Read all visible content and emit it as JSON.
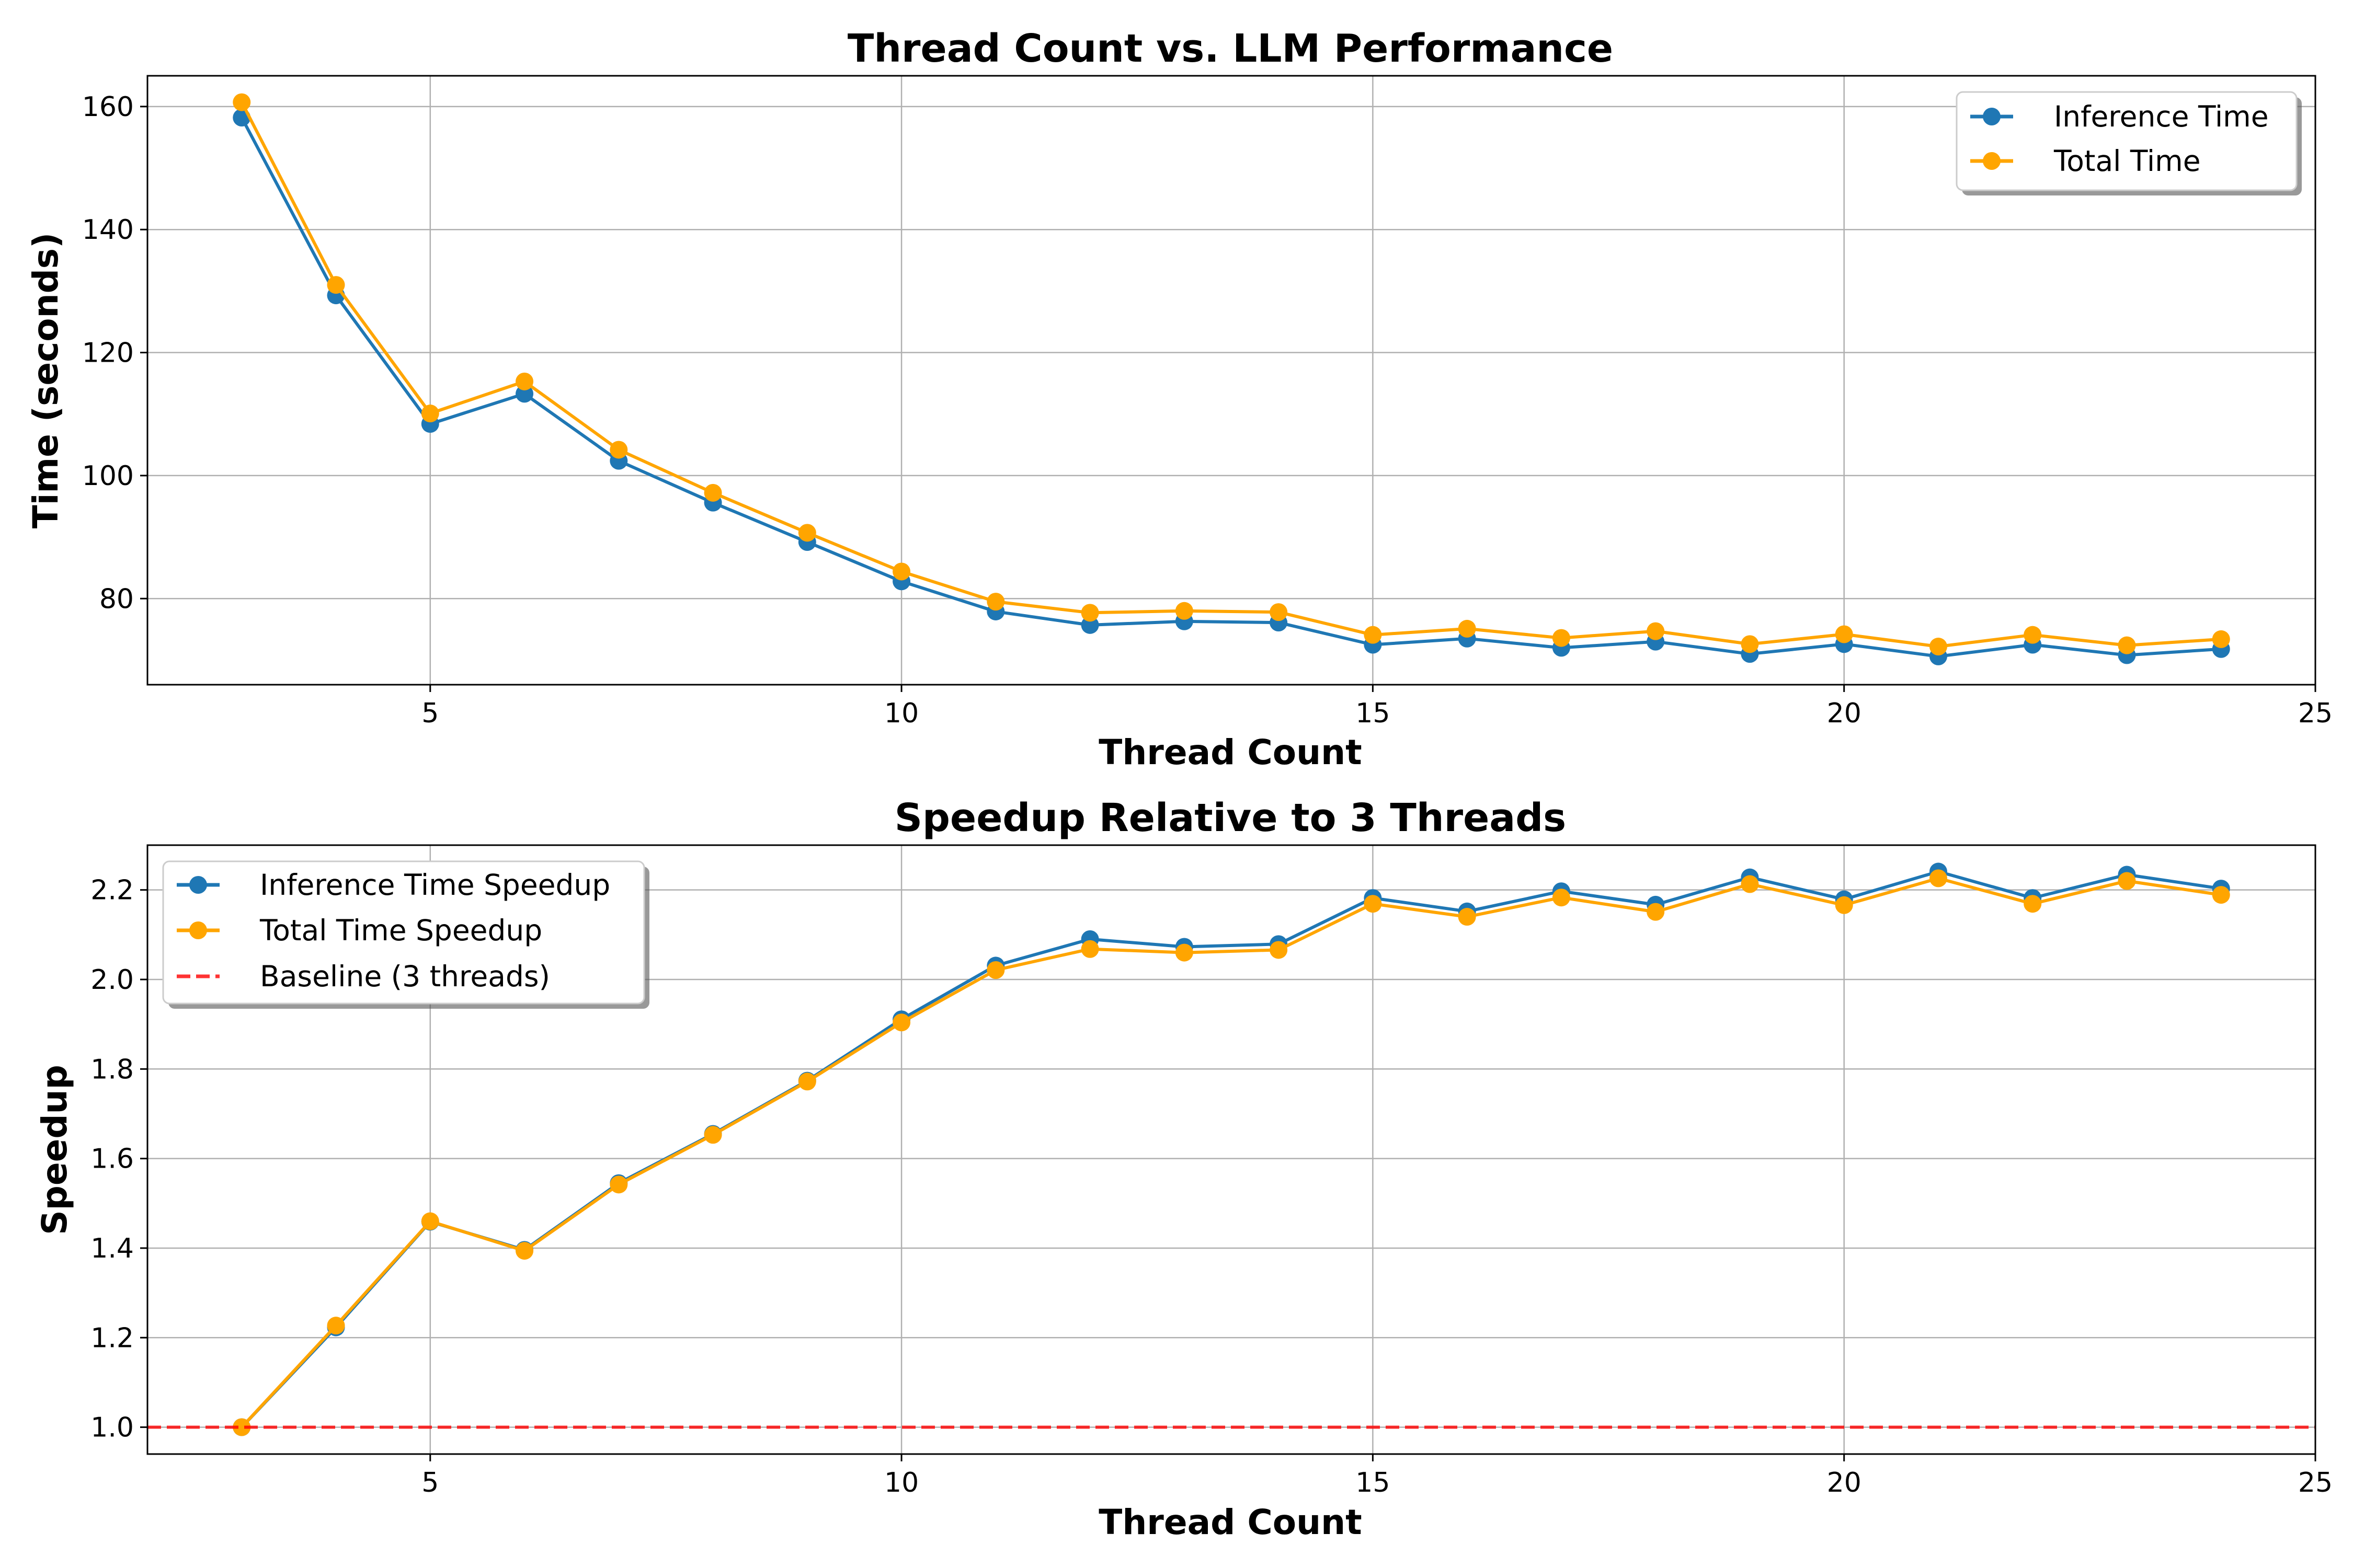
{
  "chart_data": [
    {
      "type": "line",
      "title": "Thread Count vs. LLM Performance",
      "xlabel": "Thread Count",
      "ylabel": "Time (seconds)",
      "xlim": [
        2,
        25
      ],
      "ylim": [
        66,
        165
      ],
      "xticks": [
        "5",
        "10",
        "15",
        "20",
        "25"
      ],
      "yticks": [
        "80",
        "100",
        "120",
        "140",
        "160"
      ],
      "grid": true,
      "legend_position": "top-right",
      "x": [
        3,
        4,
        5,
        6,
        7,
        8,
        9,
        10,
        11,
        12,
        13,
        14,
        15,
        16,
        17,
        18,
        19,
        20,
        21,
        22,
        23,
        24
      ],
      "series": [
        {
          "name": "Inference Time",
          "color": "#1f77b4",
          "line_style": "solid",
          "marker": "circle",
          "values": [
            158.2,
            129.3,
            108.4,
            113.3,
            102.4,
            95.6,
            89.2,
            82.8,
            77.9,
            75.7,
            76.3,
            76.1,
            72.5,
            73.5,
            72.0,
            73.0,
            71.0,
            72.6,
            70.6,
            72.5,
            70.8,
            71.8
          ]
        },
        {
          "name": "Total Time",
          "color": "#ffa500",
          "line_style": "solid",
          "marker": "circle",
          "values": [
            160.7,
            131.0,
            110.1,
            115.3,
            104.2,
            97.2,
            90.7,
            84.4,
            79.5,
            77.7,
            78.0,
            77.8,
            74.1,
            75.1,
            73.6,
            74.7,
            72.6,
            74.2,
            72.2,
            74.1,
            72.4,
            73.4
          ]
        }
      ]
    },
    {
      "type": "line",
      "title": "Speedup Relative to 3 Threads",
      "xlabel": "Thread Count",
      "ylabel": "Speedup",
      "xlim": [
        2,
        25
      ],
      "ylim": [
        0.94,
        2.3
      ],
      "xticks": [
        "5",
        "10",
        "15",
        "20",
        "25"
      ],
      "yticks": [
        "1.0",
        "1.2",
        "1.4",
        "1.6",
        "1.8",
        "2.0",
        "2.2"
      ],
      "grid": true,
      "legend_position": "top-left",
      "x": [
        3,
        4,
        5,
        6,
        7,
        8,
        9,
        10,
        11,
        12,
        13,
        14,
        15,
        16,
        17,
        18,
        19,
        20,
        21,
        22,
        23,
        24
      ],
      "series": [
        {
          "name": "Inference Time Speedup",
          "color": "#1f77b4",
          "line_style": "solid",
          "marker": "circle",
          "values": [
            1.0,
            1.223,
            1.459,
            1.396,
            1.545,
            1.655,
            1.774,
            1.911,
            2.031,
            2.09,
            2.073,
            2.079,
            2.182,
            2.152,
            2.197,
            2.167,
            2.228,
            2.179,
            2.241,
            2.182,
            2.234,
            2.203
          ]
        },
        {
          "name": "Total Time Speedup",
          "color": "#ffa500",
          "line_style": "solid",
          "marker": "circle",
          "values": [
            1.0,
            1.227,
            1.46,
            1.394,
            1.542,
            1.653,
            1.772,
            1.904,
            2.021,
            2.068,
            2.06,
            2.066,
            2.169,
            2.14,
            2.183,
            2.151,
            2.213,
            2.166,
            2.226,
            2.169,
            2.22,
            2.189
          ]
        },
        {
          "name": "Baseline (3 threads)",
          "color": "#ff0000",
          "line_style": "dashed",
          "marker": "none",
          "y_constant": 1.0
        }
      ]
    }
  ]
}
